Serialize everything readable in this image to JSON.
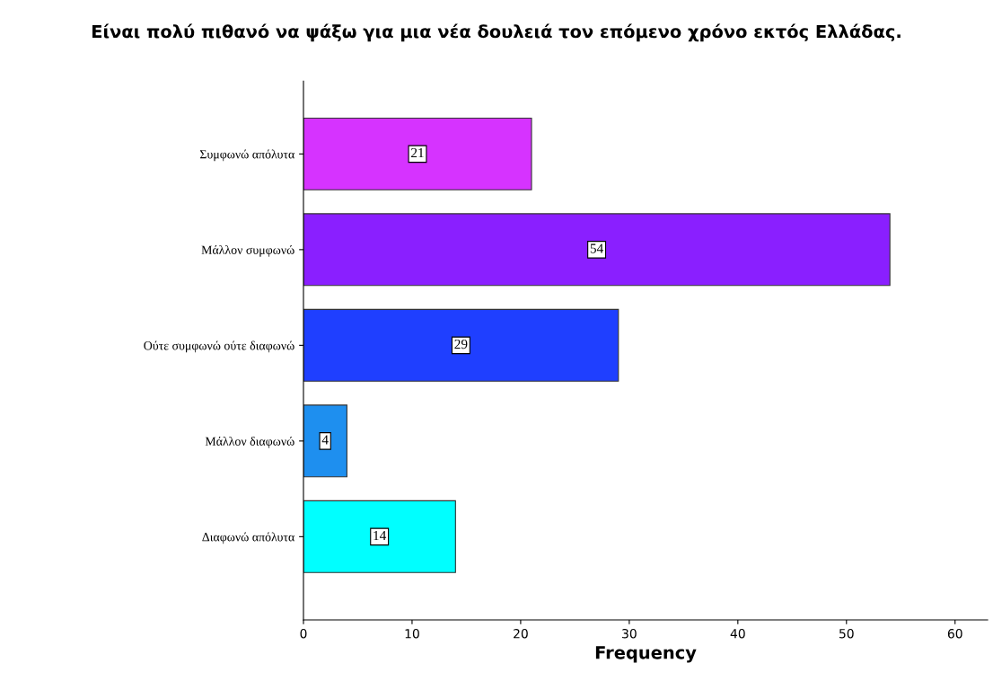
{
  "chart_data": {
    "type": "bar",
    "orientation": "horizontal",
    "title": "Είναι πολύ πιθανό να ψάξω για μια νέα δουλειά τον επόμενο χρόνο εκτός Ελλάδας.",
    "xlabel": "Frequency",
    "categories": [
      "Συμφωνώ απόλυτα",
      "Μάλλον συμφωνώ",
      "Ούτε συμφωνώ ούτε διαφωνώ",
      "Μάλλον διαφωνώ",
      "Διαφωνώ απόλυτα"
    ],
    "values": [
      21,
      54,
      29,
      4,
      14
    ],
    "colors": [
      "#d633ff",
      "#8a1fff",
      "#1f3fff",
      "#1e8fef",
      "#00ffff"
    ],
    "xlim": [
      0,
      63
    ],
    "xticks": [
      0,
      10,
      20,
      30,
      40,
      50,
      60
    ],
    "data_labels": true,
    "grid": false
  }
}
